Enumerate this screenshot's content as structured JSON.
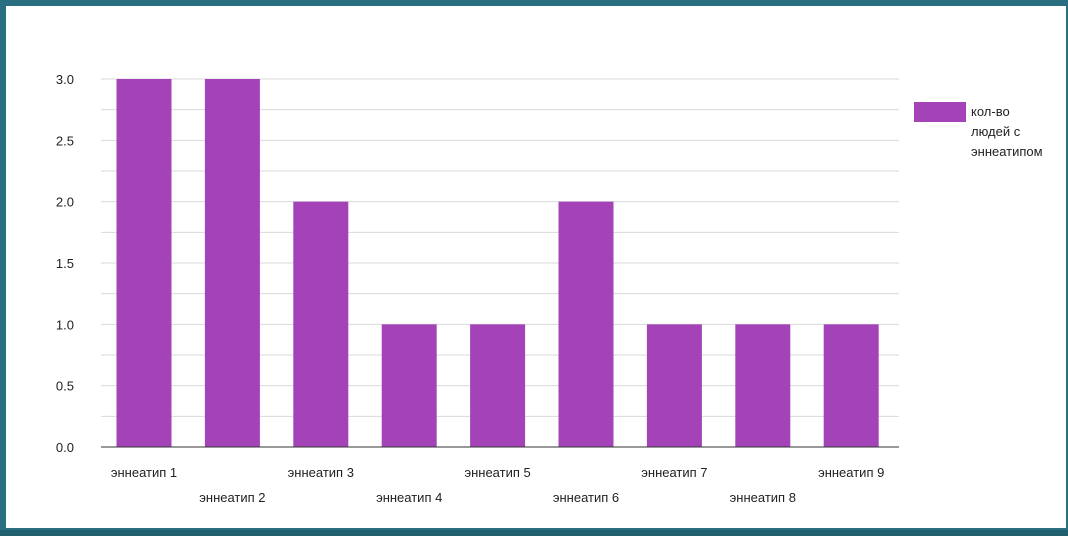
{
  "chart_data": {
    "type": "bar",
    "categories": [
      "эннеатип 1",
      "эннеатип 2",
      "эннеатип 3",
      "эннеатип 4",
      "эннеатип 5",
      "эннеатип 6",
      "эннеатип 7",
      "эннеатип 8",
      "эннеатип 9"
    ],
    "series": [
      {
        "name": "кол-во людей с эннеатипом",
        "values": [
          3,
          3,
          2,
          1,
          1,
          2,
          1,
          1,
          1
        ]
      }
    ],
    "yticks": [
      "0.0",
      "0.5",
      "1.0",
      "1.5",
      "2.0",
      "2.5",
      "3.0"
    ],
    "ylim": [
      0,
      3
    ],
    "grid": true,
    "legend": "right",
    "legend_lines": [
      "кол-во",
      "людей с",
      "эннеатипом"
    ],
    "colors": {
      "bar": "#a443b8",
      "grid": "#d9d9d9",
      "axis": "#333333"
    }
  }
}
